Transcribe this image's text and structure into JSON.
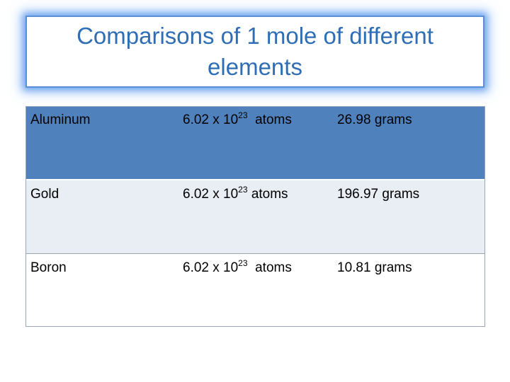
{
  "title": "Comparisons of 1 mole of different elements",
  "rows": [
    {
      "element": "Aluminum",
      "quantity_base": "6.02 x 10",
      "quantity_exp": "23",
      "quantity_unit": "atoms",
      "mass": "26.98 grams"
    },
    {
      "element": "Gold",
      "quantity_base": "6.02 x 10",
      "quantity_exp": "23",
      "quantity_unit": "atoms",
      "mass": "196.97 grams"
    },
    {
      "element": "Boron",
      "quantity_base": "6.02 x 10",
      "quantity_exp": "23",
      "quantity_unit": "atoms",
      "mass": "10.81 grams"
    }
  ],
  "colors": {
    "title": "#2f6eb5",
    "header_row": "#4f81bd",
    "band_row": "#e9edf4",
    "glow": "#5b8fd6"
  }
}
